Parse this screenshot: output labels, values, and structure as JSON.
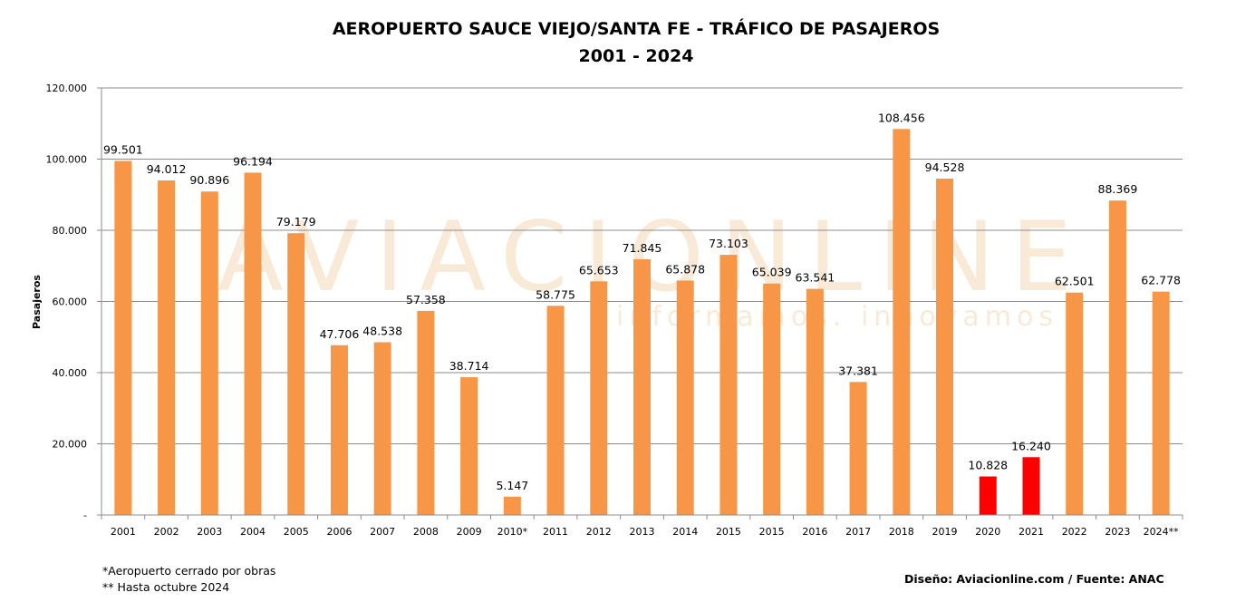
{
  "chart_data": {
    "type": "bar",
    "title": "AEROPUERTO SAUCE VIEJO/SANTA FE - TRÁFICO DE PASAJEROS",
    "subtitle": "2001 - 2024",
    "xlabel": "",
    "ylabel": "Pasajeros",
    "ylim": [
      0,
      120000
    ],
    "yticks": [
      0,
      20000,
      40000,
      60000,
      80000,
      100000,
      120000
    ],
    "ytick_labels": [
      "-",
      "20.000",
      "40.000",
      "60.000",
      "80.000",
      "100.000",
      "120.000"
    ],
    "grid": true,
    "categories": [
      "2001",
      "2002",
      "2003",
      "2004",
      "2005",
      "2006",
      "2007",
      "2008",
      "2009",
      "2010*",
      "2011",
      "2012",
      "2013",
      "2014",
      "2015",
      "2015",
      "2016",
      "2017",
      "2018",
      "2019",
      "2020",
      "2021",
      "2022",
      "2023",
      "2024**"
    ],
    "values": [
      99501,
      94012,
      90896,
      96194,
      79179,
      47706,
      48538,
      57358,
      38714,
      5147,
      58775,
      65653,
      71845,
      65878,
      73103,
      65039,
      63541,
      37381,
      108456,
      94528,
      10828,
      16240,
      62501,
      88369,
      62778
    ],
    "value_labels": [
      "99.501",
      "94.012",
      "90.896",
      "96.194",
      "79.179",
      "47.706",
      "48.538",
      "57.358",
      "38.714",
      "5.147",
      "58.775",
      "65.653",
      "71.845",
      "65.878",
      "73.103",
      "65.039",
      "63.541",
      "37.381",
      "108.456",
      "94.528",
      "10.828",
      "16.240",
      "62.501",
      "88.369",
      "62.778"
    ],
    "colors": [
      "#F79646",
      "#F79646",
      "#F79646",
      "#F79646",
      "#F79646",
      "#F79646",
      "#F79646",
      "#F79646",
      "#F79646",
      "#F79646",
      "#F79646",
      "#F79646",
      "#F79646",
      "#F79646",
      "#F79646",
      "#F79646",
      "#F79646",
      "#F79646",
      "#F79646",
      "#F79646",
      "#FF0000",
      "#FF0000",
      "#F79646",
      "#F79646",
      "#F79646"
    ]
  },
  "notes": {
    "line1": "*Aeropuerto cerrado por obras",
    "line2": "** Hasta octubre 2024"
  },
  "credit": "Diseño: Aviacionline.com / Fuente: ANAC",
  "watermark": {
    "main": "AVIACIONLINE",
    "sub": "informamos. innovamos"
  }
}
